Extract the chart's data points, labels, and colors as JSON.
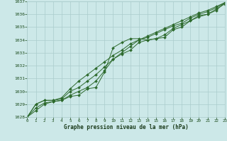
{
  "xlabel": "Graphe pression niveau de la mer (hPa)",
  "ylim": [
    1028,
    1037
  ],
  "xlim": [
    0,
    23
  ],
  "yticks": [
    1028,
    1029,
    1030,
    1031,
    1032,
    1033,
    1034,
    1035,
    1036,
    1037
  ],
  "xticks": [
    0,
    1,
    2,
    3,
    4,
    5,
    6,
    7,
    8,
    9,
    10,
    11,
    12,
    13,
    14,
    15,
    16,
    17,
    18,
    19,
    20,
    21,
    22,
    23
  ],
  "bg_color": "#cce8e8",
  "grid_color": "#aacccc",
  "line_color": "#2d6a2d",
  "markersize": 2.0,
  "linewidth": 0.7,
  "series": [
    [
      1028.0,
      1028.5,
      1029.0,
      1029.2,
      1029.3,
      1029.6,
      1029.7,
      1030.2,
      1030.3,
      1031.5,
      1033.4,
      1033.8,
      1034.1,
      1034.1,
      1034.0,
      1034.1,
      1034.2,
      1034.8,
      1035.0,
      1035.5,
      1035.8,
      1036.0,
      1036.3,
      1036.9
    ],
    [
      1028.0,
      1028.7,
      1029.1,
      1029.2,
      1029.3,
      1029.7,
      1030.0,
      1030.3,
      1030.8,
      1031.6,
      1032.5,
      1032.9,
      1033.2,
      1033.8,
      1034.0,
      1034.1,
      1034.4,
      1034.9,
      1035.2,
      1035.5,
      1035.9,
      1036.0,
      1036.4,
      1036.8
    ],
    [
      1028.0,
      1029.0,
      1029.3,
      1029.3,
      1029.4,
      1030.0,
      1030.3,
      1030.8,
      1031.3,
      1031.9,
      1032.5,
      1033.0,
      1033.5,
      1034.0,
      1034.2,
      1034.5,
      1034.8,
      1035.1,
      1035.3,
      1035.7,
      1036.0,
      1036.2,
      1036.5,
      1036.9
    ],
    [
      1028.0,
      1029.0,
      1029.3,
      1029.3,
      1029.5,
      1030.2,
      1030.8,
      1031.3,
      1031.8,
      1032.3,
      1032.8,
      1033.2,
      1033.7,
      1034.0,
      1034.3,
      1034.6,
      1034.9,
      1035.2,
      1035.5,
      1035.8,
      1036.1,
      1036.3,
      1036.6,
      1036.9
    ]
  ]
}
